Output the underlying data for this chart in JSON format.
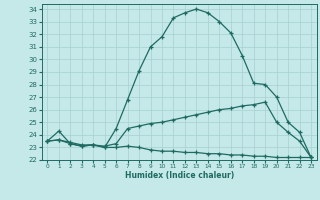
{
  "xlabel": "Humidex (Indice chaleur)",
  "xlim": [
    -0.5,
    23.5
  ],
  "ylim": [
    22,
    34.4
  ],
  "xticks": [
    0,
    1,
    2,
    3,
    4,
    5,
    6,
    7,
    8,
    9,
    10,
    11,
    12,
    13,
    14,
    15,
    16,
    17,
    18,
    19,
    20,
    21,
    22,
    23
  ],
  "yticks": [
    22,
    23,
    24,
    25,
    26,
    27,
    28,
    29,
    30,
    31,
    32,
    33,
    34
  ],
  "bg_color": "#c5e8e8",
  "line_color": "#1e6b63",
  "grid_color": "#a8d0d0",
  "line1_x": [
    0,
    1,
    2,
    3,
    4,
    5,
    6,
    7,
    8,
    9,
    10,
    11,
    12,
    13,
    14,
    15,
    16,
    17,
    18,
    19,
    20,
    21,
    22,
    23
  ],
  "line1_y": [
    23.5,
    24.3,
    23.3,
    23.1,
    23.2,
    23.0,
    24.5,
    26.8,
    29.1,
    31.0,
    31.8,
    33.3,
    33.7,
    34.0,
    33.7,
    33.0,
    32.1,
    30.3,
    28.1,
    28.0,
    27.0,
    25.0,
    24.2,
    22.2
  ],
  "line2_x": [
    0,
    1,
    2,
    3,
    4,
    5,
    6,
    7,
    8,
    9,
    10,
    11,
    12,
    13,
    14,
    15,
    16,
    17,
    18,
    19,
    20,
    21,
    22,
    23
  ],
  "line2_y": [
    23.5,
    23.6,
    23.4,
    23.2,
    23.2,
    23.1,
    23.3,
    24.5,
    24.7,
    24.9,
    25.0,
    25.2,
    25.4,
    25.6,
    25.8,
    26.0,
    26.1,
    26.3,
    26.4,
    26.6,
    25.0,
    24.2,
    23.5,
    22.2
  ],
  "line3_x": [
    0,
    1,
    2,
    3,
    4,
    5,
    6,
    7,
    8,
    9,
    10,
    11,
    12,
    13,
    14,
    15,
    16,
    17,
    18,
    19,
    20,
    21,
    22,
    23
  ],
  "line3_y": [
    23.5,
    23.6,
    23.3,
    23.1,
    23.2,
    23.0,
    23.0,
    23.1,
    23.0,
    22.8,
    22.7,
    22.7,
    22.6,
    22.6,
    22.5,
    22.5,
    22.4,
    22.4,
    22.3,
    22.3,
    22.2,
    22.2,
    22.2,
    22.2
  ]
}
